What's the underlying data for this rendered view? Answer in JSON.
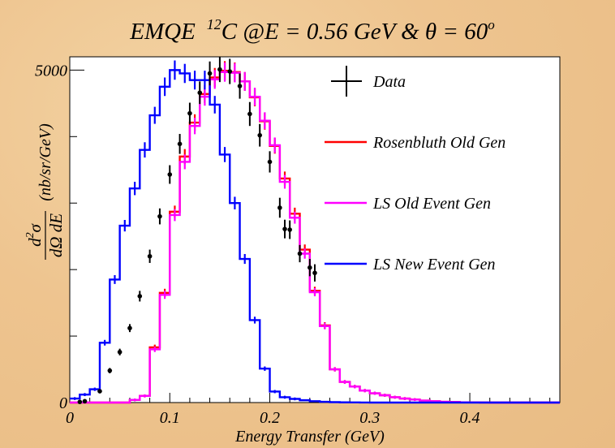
{
  "chart_data": {
    "type": "line",
    "title_parts": {
      "prefix": "EMQE",
      "mass_number": "12",
      "nucleus": "C @E = 0.56 GeV & ",
      "theta": "θ",
      "theta_value": " = 60",
      "degree": "o"
    },
    "xlabel": "Energy Transfer (GeV)",
    "ylabel_fraction": {
      "num_d": "d",
      "num_exp": "2",
      "num_sym": "σ",
      "den": "dΩ dE"
    },
    "ylabel_units": "(nb/sr/GeV)",
    "xlim": [
      0,
      0.49
    ],
    "ylim": [
      0,
      5200
    ],
    "x_ticks": [
      {
        "value": 0,
        "label": "0"
      },
      {
        "value": 0.1,
        "label": "0.1"
      },
      {
        "value": 0.2,
        "label": "0.2"
      },
      {
        "value": 0.3,
        "label": "0.3"
      },
      {
        "value": 0.4,
        "label": "0.4"
      }
    ],
    "y_ticks": [
      {
        "value": 0,
        "label": "0"
      },
      {
        "value": 5000,
        "label": "5000"
      }
    ],
    "bin_edges": [
      0,
      0.01,
      0.02,
      0.03,
      0.04,
      0.05,
      0.06,
      0.07,
      0.08,
      0.09,
      0.1,
      0.11,
      0.12,
      0.13,
      0.14,
      0.15,
      0.16,
      0.17,
      0.18,
      0.19,
      0.2,
      0.21,
      0.22,
      0.23,
      0.24,
      0.25,
      0.26,
      0.27,
      0.28,
      0.29,
      0.3,
      0.31,
      0.32,
      0.33,
      0.34,
      0.35,
      0.36,
      0.37,
      0.38,
      0.39,
      0.4,
      0.41,
      0.42,
      0.43,
      0.44,
      0.45,
      0.46,
      0.47,
      0.48,
      0.49
    ],
    "series": [
      {
        "name": "Rosenbluth Old Gen",
        "color": "#ff0000",
        "values": [
          0,
          0,
          0,
          0,
          0,
          0,
          40,
          100,
          830,
          1650,
          2870,
          3700,
          4210,
          4640,
          4890,
          4990,
          4970,
          4830,
          4590,
          4230,
          3860,
          3370,
          2840,
          2300,
          1680,
          1160,
          500,
          310,
          240,
          180,
          140,
          110,
          80,
          60,
          45,
          30,
          20,
          12,
          8,
          4,
          2,
          1,
          0,
          0,
          0,
          0,
          0,
          0,
          0
        ]
      },
      {
        "name": "LS Old Event Gen",
        "color": "#ff00ff",
        "values": [
          0,
          0,
          0,
          0,
          0,
          0,
          40,
          100,
          800,
          1620,
          2820,
          3620,
          4160,
          4600,
          4860,
          4970,
          4960,
          4830,
          4600,
          4240,
          3870,
          3320,
          2780,
          2240,
          1660,
          1150,
          500,
          310,
          240,
          180,
          140,
          110,
          80,
          60,
          45,
          30,
          20,
          12,
          8,
          4,
          2,
          1,
          0,
          0,
          0,
          0,
          0,
          0,
          0
        ]
      },
      {
        "name": "LS New Event Gen",
        "color": "#0000ff",
        "values": [
          60,
          120,
          200,
          900,
          1850,
          2660,
          3220,
          3800,
          4320,
          4750,
          5000,
          4950,
          4850,
          4850,
          4480,
          3730,
          3000,
          2160,
          1240,
          510,
          165,
          80,
          55,
          35,
          20,
          12,
          6,
          3,
          2,
          1,
          0,
          0,
          0,
          0,
          0,
          0,
          0,
          0,
          0,
          0,
          0,
          0,
          0,
          0,
          0,
          0,
          0,
          0,
          0
        ]
      },
      {
        "name": "Data",
        "color": "#000000",
        "points": [
          {
            "x": 0.01,
            "y": 10,
            "err": 15
          },
          {
            "x": 0.015,
            "y": 20,
            "err": 15
          },
          {
            "x": 0.03,
            "y": 170,
            "err": 25
          },
          {
            "x": 0.04,
            "y": 480,
            "err": 40
          },
          {
            "x": 0.05,
            "y": 760,
            "err": 50
          },
          {
            "x": 0.06,
            "y": 1120,
            "err": 60
          },
          {
            "x": 0.07,
            "y": 1600,
            "err": 80
          },
          {
            "x": 0.08,
            "y": 2200,
            "err": 100
          },
          {
            "x": 0.09,
            "y": 2800,
            "err": 120
          },
          {
            "x": 0.1,
            "y": 3430,
            "err": 140
          },
          {
            "x": 0.11,
            "y": 3890,
            "err": 150
          },
          {
            "x": 0.12,
            "y": 4350,
            "err": 160
          },
          {
            "x": 0.13,
            "y": 4660,
            "err": 170
          },
          {
            "x": 0.14,
            "y": 4950,
            "err": 180
          },
          {
            "x": 0.15,
            "y": 5010,
            "err": 190
          },
          {
            "x": 0.16,
            "y": 4980,
            "err": 190
          },
          {
            "x": 0.17,
            "y": 4760,
            "err": 190
          },
          {
            "x": 0.18,
            "y": 4340,
            "err": 180
          },
          {
            "x": 0.19,
            "y": 4020,
            "err": 170
          },
          {
            "x": 0.2,
            "y": 3620,
            "err": 160
          },
          {
            "x": 0.21,
            "y": 2930,
            "err": 150
          },
          {
            "x": 0.215,
            "y": 2610,
            "err": 140
          },
          {
            "x": 0.22,
            "y": 2600,
            "err": 140
          },
          {
            "x": 0.23,
            "y": 2240,
            "err": 130
          },
          {
            "x": 0.24,
            "y": 2030,
            "err": 130
          },
          {
            "x": 0.245,
            "y": 1950,
            "err": 130
          }
        ]
      }
    ],
    "legend": {
      "placement": "top-right",
      "entries": [
        {
          "label": "Data",
          "color": "#000000",
          "marker": "cross"
        },
        {
          "label": "Rosenbluth Old Gen",
          "color": "#ff0000",
          "marker": "line"
        },
        {
          "label": "LS Old Event Gen",
          "color": "#ff00ff",
          "marker": "line"
        },
        {
          "label": "LS New Event Gen",
          "color": "#0000ff",
          "marker": "line"
        }
      ]
    },
    "grid": false
  }
}
